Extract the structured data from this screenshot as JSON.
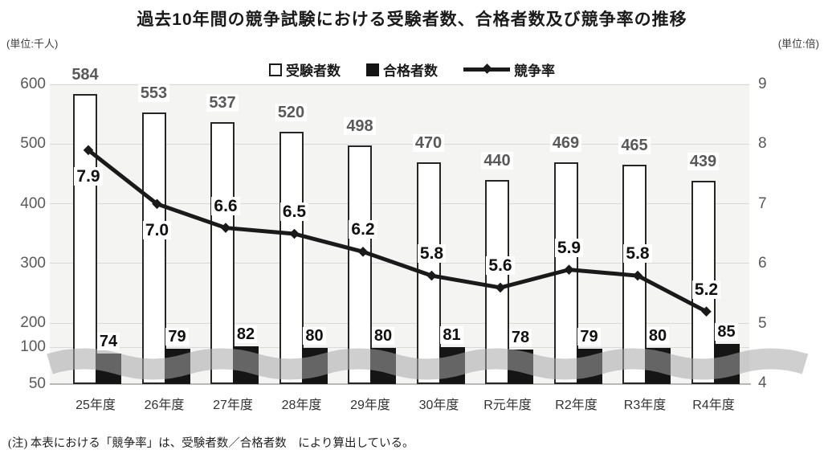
{
  "chart_data": {
    "type": "combo-bar-line",
    "title": "過去10年間の競争試験における受験者数、合格者数及び競争率の推移",
    "unit_left": "(単位:千人)",
    "unit_right": "(単位:倍)",
    "categories": [
      "25年度",
      "26年度",
      "27年度",
      "28年度",
      "29年度",
      "30年度",
      "R元年度",
      "R2年度",
      "R3年度",
      "R4年度"
    ],
    "series": [
      {
        "name": "受験者数",
        "type": "bar",
        "style": "white",
        "values": [
          584,
          553,
          537,
          520,
          498,
          470,
          440,
          469,
          465,
          439
        ]
      },
      {
        "name": "合格者数",
        "type": "bar",
        "style": "black",
        "values": [
          74,
          79,
          82,
          80,
          80,
          81,
          78,
          79,
          80,
          85
        ]
      },
      {
        "name": "競争率",
        "type": "line",
        "axis": "right",
        "values": [
          7.9,
          7.0,
          6.6,
          6.5,
          6.2,
          5.8,
          5.6,
          5.9,
          5.8,
          5.2
        ],
        "values_display": [
          "7.9",
          "7.0",
          "6.6",
          "6.5",
          "6.2",
          "5.8",
          "5.6",
          "5.9",
          "5.8",
          "5.2"
        ]
      }
    ],
    "left_axis": {
      "ticks": [
        600,
        500,
        400,
        300,
        200,
        100,
        50
      ],
      "axis_break": true,
      "grid": true
    },
    "right_axis": {
      "ticks": [
        9,
        8,
        7,
        6,
        5,
        4
      ],
      "range": [
        4,
        9
      ]
    },
    "note": "(注) 本表における「競争率」は、受験者数／合格者数　により算出している。",
    "colors": {
      "line": "#1a1a1a",
      "bar_white": "#ffffff",
      "bar_border": "#262626",
      "bar_black": "#151515",
      "value_label_gray": "#595959",
      "grid": "#d9d9d9",
      "plot_bg": "#f4f4f3",
      "break_band": "#a8a8a8"
    }
  }
}
